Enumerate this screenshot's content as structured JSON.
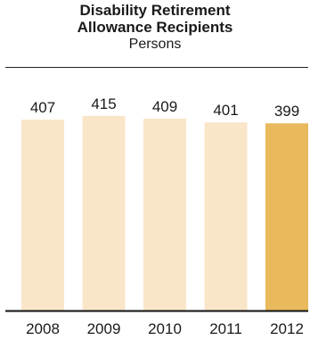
{
  "chart_data": {
    "type": "bar",
    "title_line1": "Disability Retirement",
    "title_line2": "Allowance Recipients",
    "subtitle": "Persons",
    "categories": [
      "2008",
      "2009",
      "2010",
      "2011",
      "2012"
    ],
    "values": [
      407,
      415,
      409,
      401,
      399
    ],
    "ylim": [
      0,
      420
    ],
    "highlight_index": 4,
    "colors": {
      "bar": "#f9e6c9",
      "highlight": "#e8ba5c",
      "axis": "#111111"
    },
    "grid": false,
    "legend": "none"
  }
}
